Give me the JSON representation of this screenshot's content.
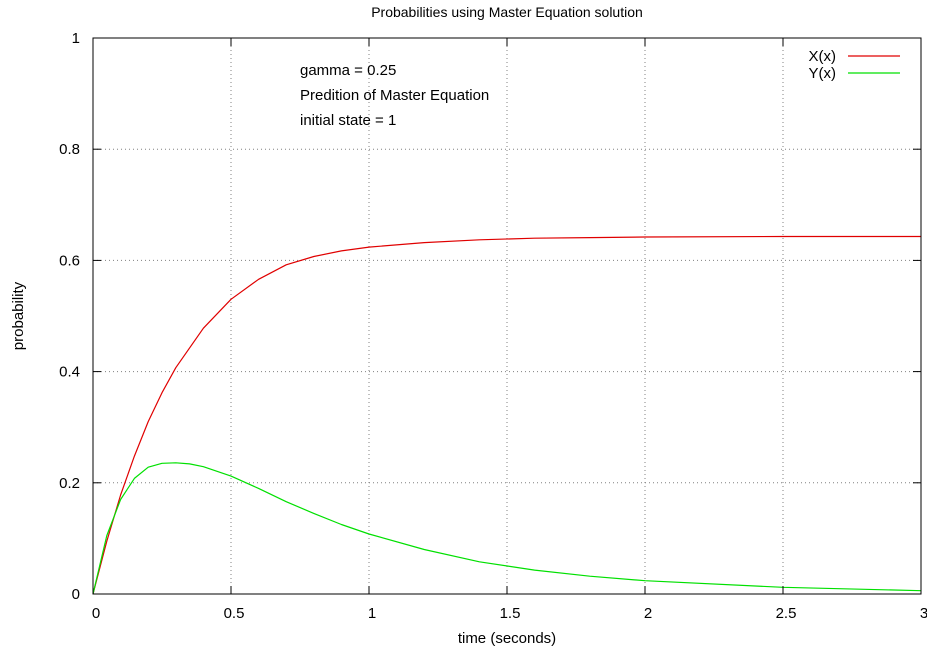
{
  "chart_data": {
    "type": "line",
    "title": "Probabilities using Master Equation solution",
    "xlabel": "time (seconds)",
    "ylabel": "probability",
    "xlim": [
      0,
      3
    ],
    "ylim": [
      0,
      1
    ],
    "grid": true,
    "legend_position": "top-right",
    "x_ticks": [
      0,
      0.5,
      1,
      1.5,
      2,
      2.5,
      3
    ],
    "x_tick_labels": [
      "0",
      "0.5",
      "1",
      "1.5",
      "2",
      "2.5",
      "3"
    ],
    "y_ticks": [
      0,
      0.2,
      0.4,
      0.6,
      0.8,
      1
    ],
    "y_tick_labels": [
      "0",
      "0.2",
      "0.4",
      "0.6",
      "0.8",
      "1"
    ],
    "annotations": [
      "gamma = 0.25",
      "Predition of Master Equation",
      "initial state  = 1"
    ],
    "series": [
      {
        "name": "X(x)",
        "color": "#e00000",
        "x": [
          0,
          0.05,
          0.1,
          0.15,
          0.2,
          0.25,
          0.3,
          0.4,
          0.5,
          0.6,
          0.7,
          0.8,
          0.9,
          1.0,
          1.2,
          1.4,
          1.6,
          1.8,
          2.0,
          2.5,
          3.0
        ],
        "y": [
          0,
          0.095,
          0.178,
          0.248,
          0.31,
          0.362,
          0.407,
          0.478,
          0.53,
          0.566,
          0.592,
          0.607,
          0.617,
          0.624,
          0.632,
          0.637,
          0.64,
          0.641,
          0.642,
          0.643,
          0.643
        ]
      },
      {
        "name": "Y(x)",
        "color": "#00e000",
        "x": [
          0,
          0.05,
          0.1,
          0.15,
          0.2,
          0.25,
          0.3,
          0.35,
          0.4,
          0.5,
          0.6,
          0.7,
          0.8,
          0.9,
          1.0,
          1.2,
          1.4,
          1.6,
          1.8,
          2.0,
          2.5,
          3.0
        ],
        "y": [
          0,
          0.105,
          0.17,
          0.208,
          0.228,
          0.235,
          0.236,
          0.234,
          0.229,
          0.212,
          0.19,
          0.166,
          0.145,
          0.125,
          0.108,
          0.08,
          0.058,
          0.043,
          0.032,
          0.024,
          0.012,
          0.006
        ]
      }
    ]
  }
}
